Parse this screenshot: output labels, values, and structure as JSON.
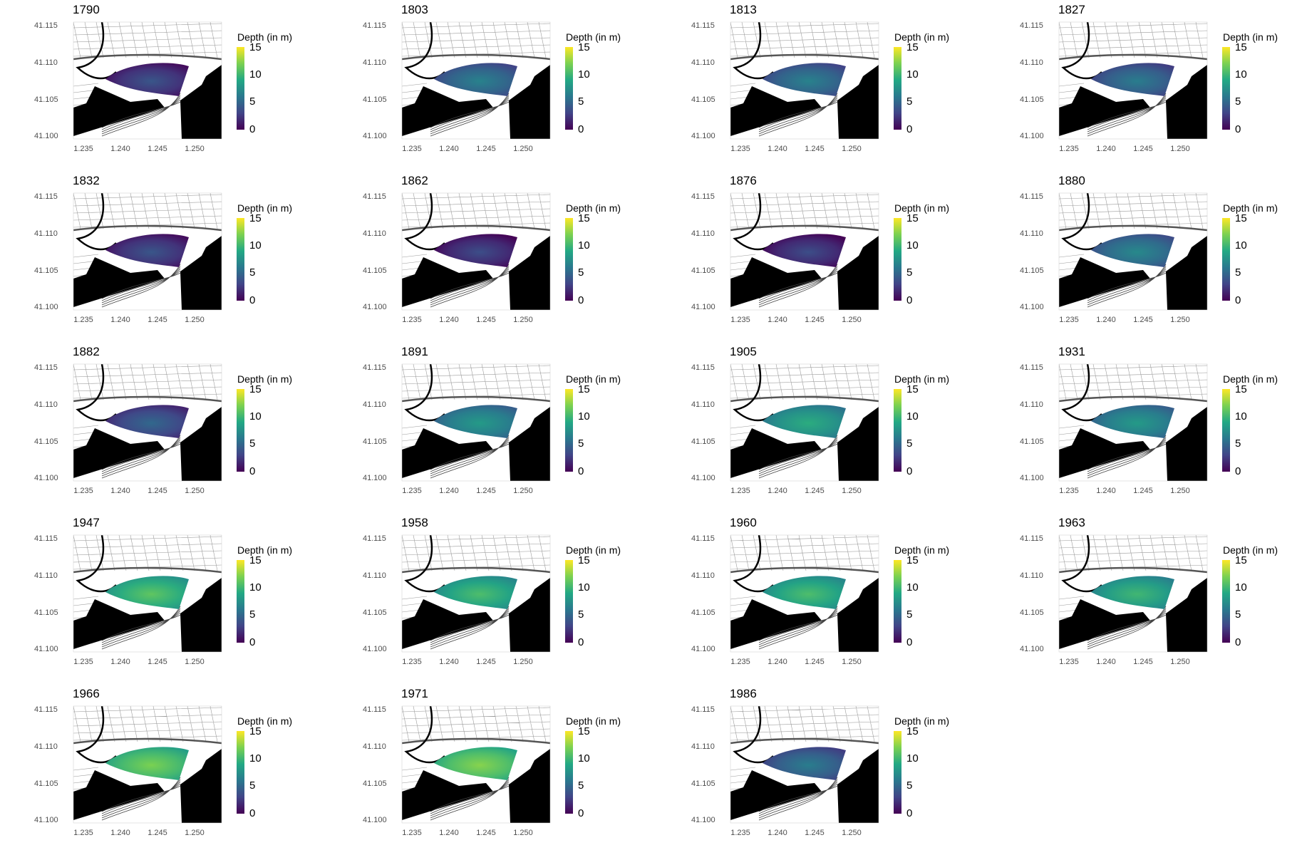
{
  "legend": {
    "title": "Depth (in m)",
    "ticks": [
      "15",
      "10",
      "5",
      "0"
    ],
    "colormap": [
      "#440154",
      "#414487",
      "#2a788e",
      "#22a884",
      "#7ad151",
      "#fde725"
    ]
  },
  "axes": {
    "y_ticks": [
      "41.115",
      "41.110",
      "41.105",
      "41.100"
    ],
    "x_ticks": [
      "1.235",
      "1.240",
      "1.245",
      "1.250"
    ]
  },
  "colors": {
    "land": "#000000",
    "street_lines": "#9a9a9a",
    "background": "#ffffff"
  },
  "panels": [
    {
      "year": "1790",
      "depth_level": 0.15
    },
    {
      "year": "1803",
      "depth_level": 0.32
    },
    {
      "year": "1813",
      "depth_level": 0.32
    },
    {
      "year": "1827",
      "depth_level": 0.3
    },
    {
      "year": "1832",
      "depth_level": 0.15
    },
    {
      "year": "1862",
      "depth_level": 0.12
    },
    {
      "year": "1876",
      "depth_level": 0.12
    },
    {
      "year": "1880",
      "depth_level": 0.35
    },
    {
      "year": "1882",
      "depth_level": 0.22
    },
    {
      "year": "1891",
      "depth_level": 0.42
    },
    {
      "year": "1905",
      "depth_level": 0.5
    },
    {
      "year": "1931",
      "depth_level": 0.42
    },
    {
      "year": "1947",
      "depth_level": 0.62
    },
    {
      "year": "1958",
      "depth_level": 0.58
    },
    {
      "year": "1960",
      "depth_level": 0.58
    },
    {
      "year": "1963",
      "depth_level": 0.55
    },
    {
      "year": "1966",
      "depth_level": 0.68
    },
    {
      "year": "1971",
      "depth_level": 0.7
    },
    {
      "year": "1986",
      "depth_level": 0.3
    }
  ]
}
